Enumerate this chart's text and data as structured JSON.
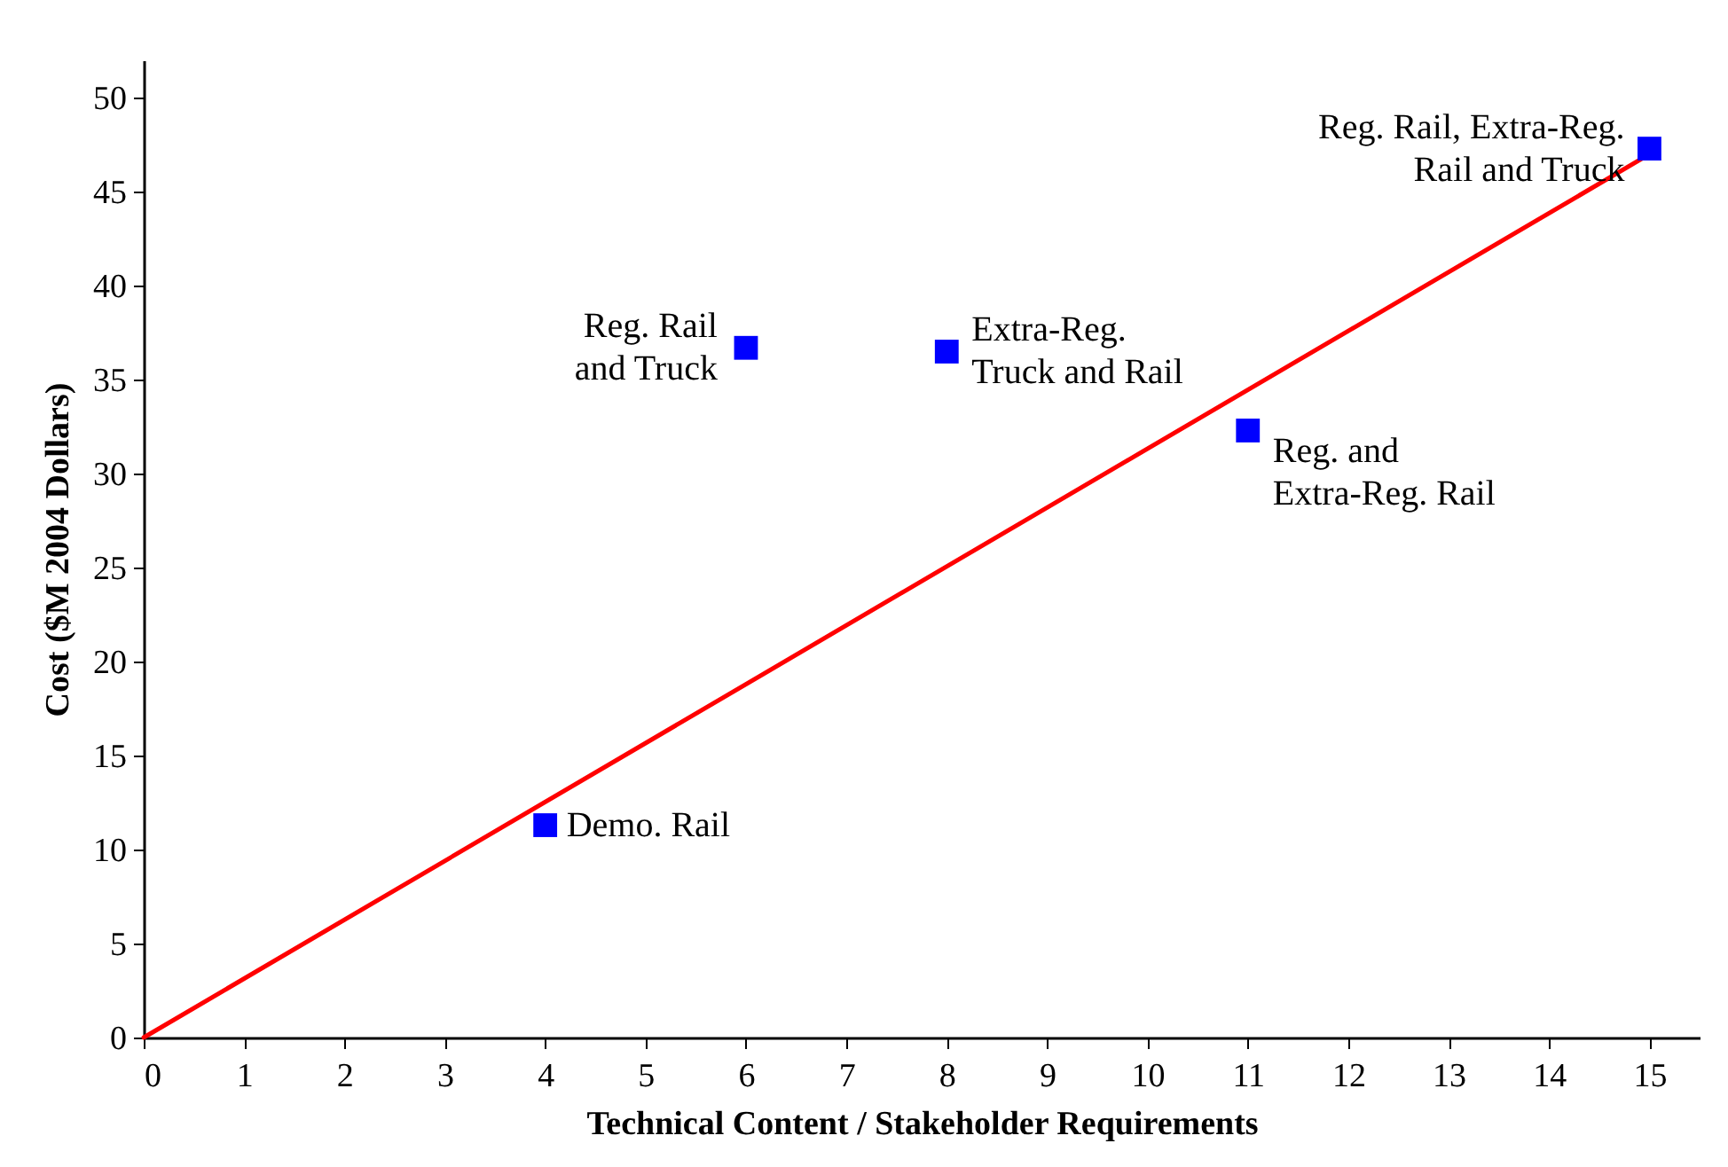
{
  "chart_data": {
    "type": "scatter",
    "xlabel": "Technical Content / Stakeholder Requirements",
    "ylabel": "Cost ($M 2004 Dollars)",
    "xlim": [
      0,
      15.5
    ],
    "ylim": [
      0,
      52
    ],
    "xticks": [
      0,
      1,
      2,
      3,
      4,
      5,
      6,
      7,
      8,
      9,
      10,
      11,
      12,
      13,
      14,
      15
    ],
    "yticks": [
      0,
      5,
      10,
      15,
      20,
      25,
      30,
      35,
      40,
      45,
      50
    ],
    "grid": false,
    "series": [
      {
        "type": "line",
        "color": "#ff0000",
        "x": [
          0,
          15
        ],
        "values": [
          0,
          47
        ]
      },
      {
        "color": "#0000ff",
        "marker": "square",
        "x": [
          4,
          6,
          8,
          11,
          15
        ],
        "values": [
          11.3,
          36.7,
          36.5,
          32.3,
          47.3
        ]
      }
    ],
    "annotations": [
      {
        "text": "Demo. Rail",
        "x": 4,
        "y": 11.3
      },
      {
        "text": "Reg. Rail\nand Truck",
        "x": 6,
        "y": 36.7
      },
      {
        "text": "Extra-Reg.\nTruck and Rail",
        "x": 8,
        "y": 36.5
      },
      {
        "text": "Reg. and\nExtra-Reg. Rail",
        "x": 11,
        "y": 32.3
      },
      {
        "text": "Reg. Rail, Extra-Reg.\nRail and Truck",
        "x": 15,
        "y": 47.3
      }
    ]
  }
}
